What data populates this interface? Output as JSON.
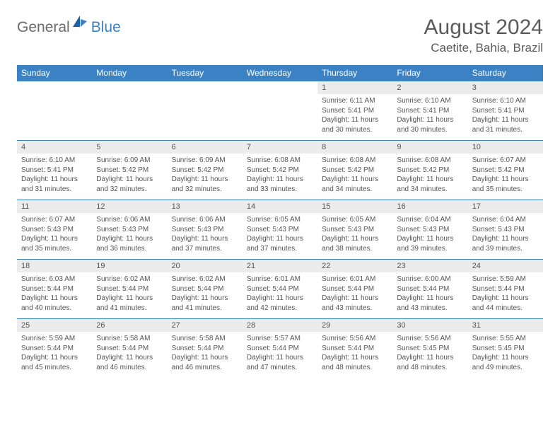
{
  "brand": {
    "general": "General",
    "blue": "Blue"
  },
  "title": {
    "month": "August 2024",
    "location": "Caetite, Bahia, Brazil"
  },
  "style": {
    "header_bar_color": "#3b82c4",
    "daynum_bg": "#ececec",
    "text_color": "#555555",
    "background": "#ffffff",
    "title_fontsize": 30,
    "location_fontsize": 17,
    "head_fontsize": 12,
    "day_fontsize": 10
  },
  "weekdays": [
    "Sunday",
    "Monday",
    "Tuesday",
    "Wednesday",
    "Thursday",
    "Friday",
    "Saturday"
  ],
  "grid": [
    [
      null,
      null,
      null,
      null,
      {
        "n": "1",
        "sr": "6:11 AM",
        "ss": "5:41 PM",
        "dl": "11 hours and 30 minutes."
      },
      {
        "n": "2",
        "sr": "6:10 AM",
        "ss": "5:41 PM",
        "dl": "11 hours and 30 minutes."
      },
      {
        "n": "3",
        "sr": "6:10 AM",
        "ss": "5:41 PM",
        "dl": "11 hours and 31 minutes."
      }
    ],
    [
      {
        "n": "4",
        "sr": "6:10 AM",
        "ss": "5:41 PM",
        "dl": "11 hours and 31 minutes."
      },
      {
        "n": "5",
        "sr": "6:09 AM",
        "ss": "5:42 PM",
        "dl": "11 hours and 32 minutes."
      },
      {
        "n": "6",
        "sr": "6:09 AM",
        "ss": "5:42 PM",
        "dl": "11 hours and 32 minutes."
      },
      {
        "n": "7",
        "sr": "6:08 AM",
        "ss": "5:42 PM",
        "dl": "11 hours and 33 minutes."
      },
      {
        "n": "8",
        "sr": "6:08 AM",
        "ss": "5:42 PM",
        "dl": "11 hours and 34 minutes."
      },
      {
        "n": "9",
        "sr": "6:08 AM",
        "ss": "5:42 PM",
        "dl": "11 hours and 34 minutes."
      },
      {
        "n": "10",
        "sr": "6:07 AM",
        "ss": "5:42 PM",
        "dl": "11 hours and 35 minutes."
      }
    ],
    [
      {
        "n": "11",
        "sr": "6:07 AM",
        "ss": "5:43 PM",
        "dl": "11 hours and 35 minutes."
      },
      {
        "n": "12",
        "sr": "6:06 AM",
        "ss": "5:43 PM",
        "dl": "11 hours and 36 minutes."
      },
      {
        "n": "13",
        "sr": "6:06 AM",
        "ss": "5:43 PM",
        "dl": "11 hours and 37 minutes."
      },
      {
        "n": "14",
        "sr": "6:05 AM",
        "ss": "5:43 PM",
        "dl": "11 hours and 37 minutes."
      },
      {
        "n": "15",
        "sr": "6:05 AM",
        "ss": "5:43 PM",
        "dl": "11 hours and 38 minutes."
      },
      {
        "n": "16",
        "sr": "6:04 AM",
        "ss": "5:43 PM",
        "dl": "11 hours and 39 minutes."
      },
      {
        "n": "17",
        "sr": "6:04 AM",
        "ss": "5:43 PM",
        "dl": "11 hours and 39 minutes."
      }
    ],
    [
      {
        "n": "18",
        "sr": "6:03 AM",
        "ss": "5:44 PM",
        "dl": "11 hours and 40 minutes."
      },
      {
        "n": "19",
        "sr": "6:02 AM",
        "ss": "5:44 PM",
        "dl": "11 hours and 41 minutes."
      },
      {
        "n": "20",
        "sr": "6:02 AM",
        "ss": "5:44 PM",
        "dl": "11 hours and 41 minutes."
      },
      {
        "n": "21",
        "sr": "6:01 AM",
        "ss": "5:44 PM",
        "dl": "11 hours and 42 minutes."
      },
      {
        "n": "22",
        "sr": "6:01 AM",
        "ss": "5:44 PM",
        "dl": "11 hours and 43 minutes."
      },
      {
        "n": "23",
        "sr": "6:00 AM",
        "ss": "5:44 PM",
        "dl": "11 hours and 43 minutes."
      },
      {
        "n": "24",
        "sr": "5:59 AM",
        "ss": "5:44 PM",
        "dl": "11 hours and 44 minutes."
      }
    ],
    [
      {
        "n": "25",
        "sr": "5:59 AM",
        "ss": "5:44 PM",
        "dl": "11 hours and 45 minutes."
      },
      {
        "n": "26",
        "sr": "5:58 AM",
        "ss": "5:44 PM",
        "dl": "11 hours and 46 minutes."
      },
      {
        "n": "27",
        "sr": "5:58 AM",
        "ss": "5:44 PM",
        "dl": "11 hours and 46 minutes."
      },
      {
        "n": "28",
        "sr": "5:57 AM",
        "ss": "5:44 PM",
        "dl": "11 hours and 47 minutes."
      },
      {
        "n": "29",
        "sr": "5:56 AM",
        "ss": "5:44 PM",
        "dl": "11 hours and 48 minutes."
      },
      {
        "n": "30",
        "sr": "5:56 AM",
        "ss": "5:45 PM",
        "dl": "11 hours and 48 minutes."
      },
      {
        "n": "31",
        "sr": "5:55 AM",
        "ss": "5:45 PM",
        "dl": "11 hours and 49 minutes."
      }
    ]
  ],
  "labels": {
    "sunrise": "Sunrise: ",
    "sunset": "Sunset: ",
    "daylight": "Daylight: "
  }
}
